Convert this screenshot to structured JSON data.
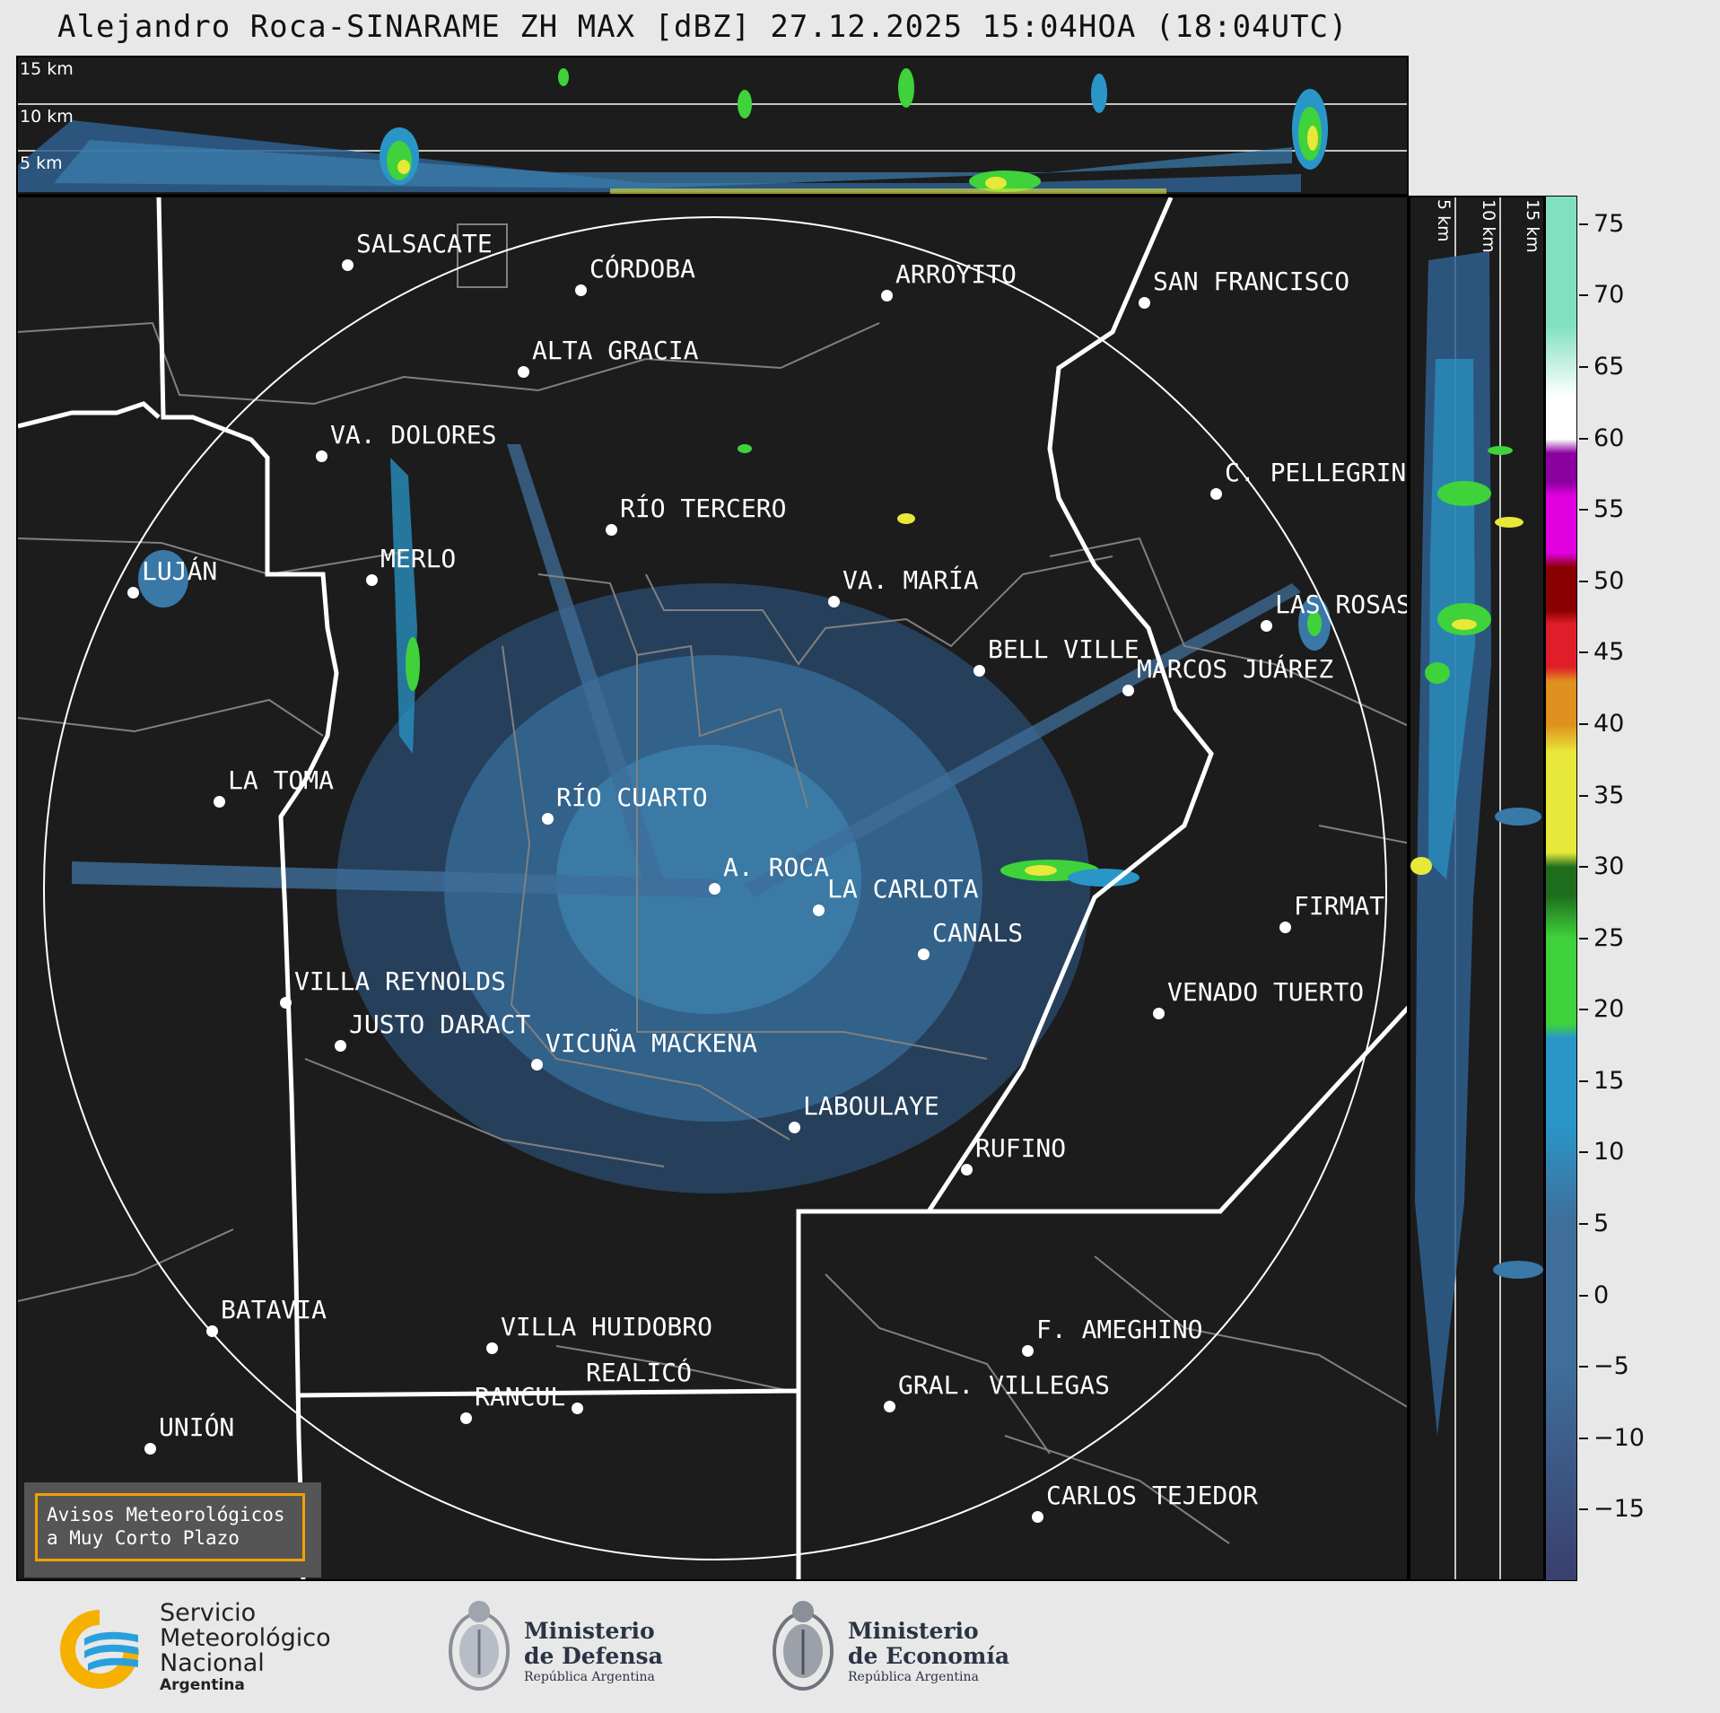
{
  "title": "Alejandro Roca-SINARAME ZH MAX [dBZ] 27.12.2025 15:04HOA (18:04UTC)",
  "top_panel": {
    "km_labels": [
      "15 km",
      "10 km",
      "5 km"
    ]
  },
  "side_panel": {
    "km_labels": [
      "5 km",
      "10 km",
      "15 km"
    ]
  },
  "cities": [
    {
      "name": "SALSACATE"
    },
    {
      "name": "CÓRDOBA"
    },
    {
      "name": "ARROYITO"
    },
    {
      "name": "SAN FRANCISCO"
    },
    {
      "name": "ALTA GRACIA"
    },
    {
      "name": "VA. DOLORES"
    },
    {
      "name": "C. PELLEGRINI"
    },
    {
      "name": "RÍO TERCERO"
    },
    {
      "name": "LUJÁN"
    },
    {
      "name": "MERLO"
    },
    {
      "name": "VA. MARÍA"
    },
    {
      "name": "LAS ROSAS"
    },
    {
      "name": "BELL VILLE"
    },
    {
      "name": "MARCOS JUÁREZ"
    },
    {
      "name": "LA TOMA"
    },
    {
      "name": "RÍO CUARTO"
    },
    {
      "name": "A. ROCA"
    },
    {
      "name": "LA CARLOTA"
    },
    {
      "name": "FIRMAT"
    },
    {
      "name": "CANALS"
    },
    {
      "name": "VILLA REYNOLDS"
    },
    {
      "name": "VENADO TUERTO"
    },
    {
      "name": "JUSTO DARACT"
    },
    {
      "name": "VICUÑA MACKENA"
    },
    {
      "name": "LABOULAYE"
    },
    {
      "name": "RUFINO"
    },
    {
      "name": "BATAVIA"
    },
    {
      "name": "VILLA HUIDOBRO"
    },
    {
      "name": "F. AMEGHINO"
    },
    {
      "name": "RANCUL"
    },
    {
      "name": "REALICÓ"
    },
    {
      "name": "GRAL. VILLEGAS"
    },
    {
      "name": "UNIÓN"
    },
    {
      "name": "CARLOS TEJEDOR"
    }
  ],
  "colorbar": {
    "ticks": [
      "75",
      "70",
      "65",
      "60",
      "55",
      "50",
      "45",
      "40",
      "35",
      "30",
      "25",
      "20",
      "15",
      "10",
      "5",
      "0",
      "−5",
      "−10",
      "−15"
    ],
    "range": [
      -20,
      77
    ],
    "colors": {
      "low": "#3a3f6e",
      "mid_low": "#3f6e9a",
      "blue": "#2a96c8",
      "green": "#3fd23a",
      "dark_green": "#1e6e1e",
      "yellow": "#e8e83a",
      "orange": "#e0901e",
      "red": "#e01e2a",
      "dark_red": "#8a0000",
      "magenta": "#e000e0",
      "purple": "#8a00a0",
      "white": "#ffffff",
      "mint": "#80e0c0"
    }
  },
  "aviso": {
    "line1": "Avisos Meteorológicos",
    "line2": "a Muy Corto Plazo"
  },
  "logos": {
    "smn": {
      "line1": "Servicio",
      "line2": "Meteorológico",
      "line3": "Nacional",
      "line4": "Argentina"
    },
    "defensa": {
      "line1": "Ministerio",
      "line2": "de Defensa",
      "line3": "República Argentina"
    },
    "economia": {
      "line1": "Ministerio",
      "line2": "de Economía",
      "line3": "República Argentina"
    }
  }
}
